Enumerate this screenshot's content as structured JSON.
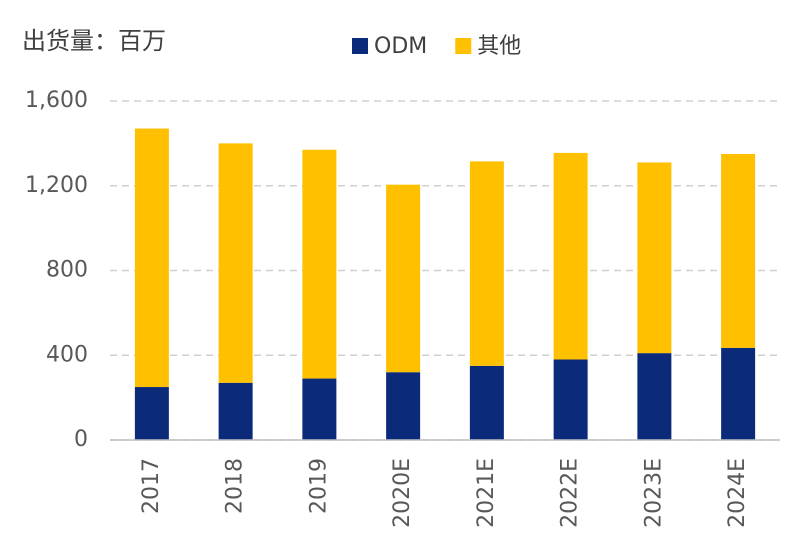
{
  "chart_data": {
    "type": "stacked_bar",
    "y_label": "出货量：百万",
    "categories": [
      "2017",
      "2018",
      "2019",
      "2020E",
      "2021E",
      "2022E",
      "2023E",
      "2024E"
    ],
    "series": [
      {
        "name": "ODM",
        "color": "#0b2a7a",
        "values": [
          250,
          270,
          290,
          320,
          350,
          380,
          410,
          435
        ]
      },
      {
        "name": "其他",
        "color": "#ffc000",
        "values": [
          1220,
          1130,
          1080,
          885,
          965,
          975,
          900,
          915
        ]
      }
    ],
    "ylim": [
      0,
      1600
    ],
    "yticks": [
      0,
      400,
      800,
      {
        "value": 1200,
        "label": "1,200"
      },
      {
        "value": 1600,
        "label": "1,600"
      }
    ],
    "grid": true
  }
}
